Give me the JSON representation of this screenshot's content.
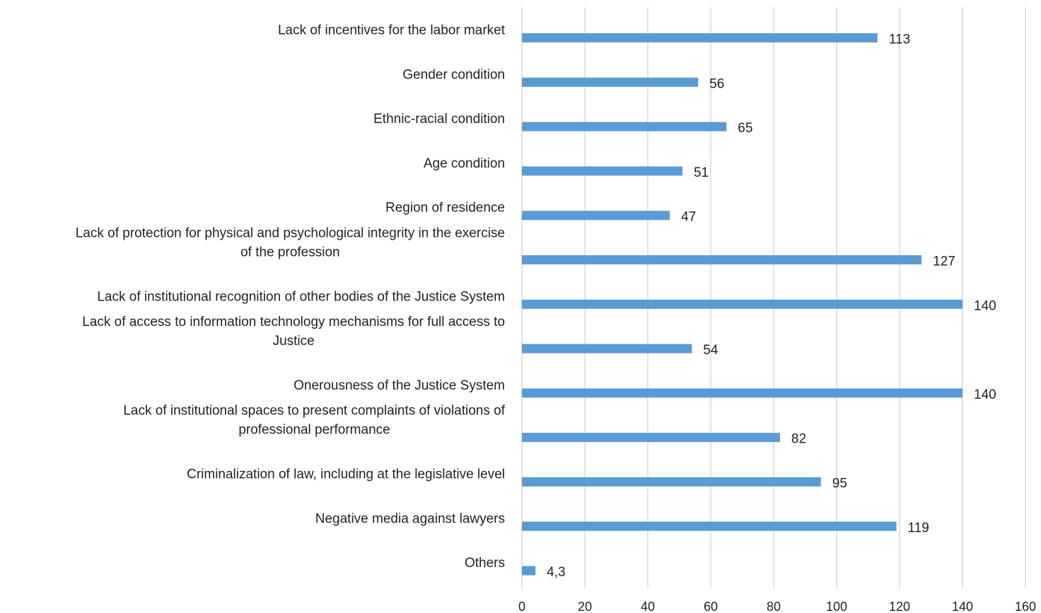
{
  "chart_data": {
    "type": "bar",
    "orientation": "horizontal",
    "categories": [
      [
        "Lack of incentives for the labor market"
      ],
      [
        "Gender condition"
      ],
      [
        "Ethnic-racial condition"
      ],
      [
        "Age condition"
      ],
      [
        "Region of residence"
      ],
      [
        "Lack of protection for physical and psychological integrity in the exercise",
        "of the profession"
      ],
      [
        "Lack of institutional recognition of other bodies of the Justice System"
      ],
      [
        "Lack of access to information technology mechanisms for full access to",
        "Justice"
      ],
      [
        "Onerousness of the Justice System"
      ],
      [
        "Lack of institutional spaces to present complaints of violations of",
        "professional performance"
      ],
      [
        "Criminalization of law, including at the legislative level"
      ],
      [
        "Negative media against lawyers"
      ],
      [
        "Others"
      ]
    ],
    "values": [
      113,
      56,
      65,
      51,
      47,
      127,
      140,
      54,
      140,
      82,
      95,
      119,
      4.3
    ],
    "data_labels": [
      "113",
      "56",
      "65",
      "51",
      "47",
      "127",
      "140",
      "54",
      "140",
      "82",
      "95",
      "119",
      "4,3"
    ],
    "xlim": [
      0,
      160
    ],
    "xticks": [
      "0",
      "20",
      "40",
      "60",
      "80",
      "100",
      "120",
      "140",
      "160"
    ],
    "grid": true,
    "legend": "none",
    "bar_color": "#5b9bd5"
  }
}
